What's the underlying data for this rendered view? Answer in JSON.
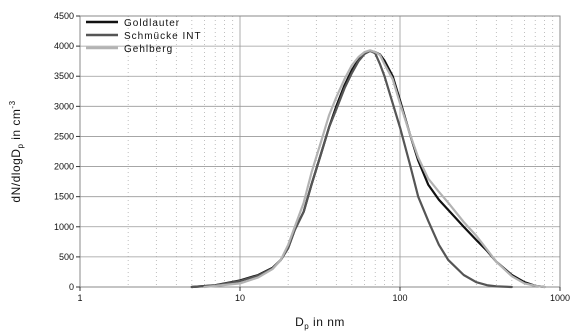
{
  "chart_data": {
    "type": "line",
    "xscale": "log",
    "xlim": [
      1,
      1000
    ],
    "ylim": [
      0,
      4500
    ],
    "grid": true,
    "legend_position": "top-left",
    "xlabel_main": "D",
    "xlabel_sub": "p",
    "xlabel_rest": " in nm",
    "ylabel_main": "dN/dlogD",
    "ylabel_sub": "p",
    "ylabel_rest": " in cm",
    "ylabel_sup": "-3",
    "x_ticks": [
      1,
      10,
      100,
      1000
    ],
    "x_tick_labels": [
      "1",
      "10",
      "100",
      "1000"
    ],
    "y_ticks": [
      0,
      500,
      1000,
      1500,
      2000,
      2500,
      3000,
      3500,
      4000,
      4500
    ],
    "y_tick_labels": [
      "0",
      "500",
      "1000",
      "1500",
      "2000",
      "2500",
      "3000",
      "3500",
      "4000",
      "4500"
    ],
    "series": [
      {
        "name": "Goldlauter",
        "color": "#111111",
        "points": [
          [
            5,
            0
          ],
          [
            7,
            30
          ],
          [
            10,
            110
          ],
          [
            13,
            200
          ],
          [
            16,
            320
          ],
          [
            18,
            450
          ],
          [
            20,
            650
          ],
          [
            22,
            950
          ],
          [
            25,
            1250
          ],
          [
            28,
            1700
          ],
          [
            32,
            2200
          ],
          [
            36,
            2650
          ],
          [
            40,
            3000
          ],
          [
            45,
            3350
          ],
          [
            50,
            3600
          ],
          [
            55,
            3780
          ],
          [
            60,
            3880
          ],
          [
            65,
            3920
          ],
          [
            70,
            3900
          ],
          [
            75,
            3860
          ],
          [
            80,
            3760
          ],
          [
            90,
            3500
          ],
          [
            100,
            3100
          ],
          [
            115,
            2550
          ],
          [
            130,
            2100
          ],
          [
            150,
            1700
          ],
          [
            175,
            1450
          ],
          [
            200,
            1280
          ],
          [
            250,
            1000
          ],
          [
            300,
            780
          ],
          [
            350,
            600
          ],
          [
            400,
            420
          ],
          [
            500,
            200
          ],
          [
            600,
            80
          ],
          [
            700,
            20
          ],
          [
            800,
            0
          ]
        ]
      },
      {
        "name": "Schmücke INT",
        "color": "#555555",
        "points": [
          [
            5,
            0
          ],
          [
            7,
            25
          ],
          [
            10,
            100
          ],
          [
            13,
            190
          ],
          [
            16,
            310
          ],
          [
            18,
            450
          ],
          [
            20,
            650
          ],
          [
            22,
            950
          ],
          [
            25,
            1250
          ],
          [
            28,
            1700
          ],
          [
            32,
            2200
          ],
          [
            36,
            2650
          ],
          [
            40,
            2950
          ],
          [
            45,
            3300
          ],
          [
            50,
            3550
          ],
          [
            55,
            3750
          ],
          [
            60,
            3870
          ],
          [
            65,
            3920
          ],
          [
            70,
            3880
          ],
          [
            75,
            3700
          ],
          [
            80,
            3500
          ],
          [
            90,
            3050
          ],
          [
            100,
            2650
          ],
          [
            115,
            2050
          ],
          [
            130,
            1500
          ],
          [
            150,
            1100
          ],
          [
            175,
            700
          ],
          [
            200,
            450
          ],
          [
            250,
            200
          ],
          [
            300,
            80
          ],
          [
            350,
            30
          ],
          [
            400,
            10
          ],
          [
            500,
            0
          ]
        ]
      },
      {
        "name": "Gehlberg",
        "color": "#b3b3b3",
        "points": [
          [
            6,
            0
          ],
          [
            10,
            60
          ],
          [
            13,
            160
          ],
          [
            16,
            300
          ],
          [
            18,
            450
          ],
          [
            20,
            700
          ],
          [
            22,
            1000
          ],
          [
            25,
            1400
          ],
          [
            28,
            1900
          ],
          [
            32,
            2400
          ],
          [
            36,
            2850
          ],
          [
            40,
            3150
          ],
          [
            45,
            3450
          ],
          [
            50,
            3680
          ],
          [
            55,
            3820
          ],
          [
            60,
            3900
          ],
          [
            65,
            3930
          ],
          [
            70,
            3900
          ],
          [
            75,
            3850
          ],
          [
            80,
            3700
          ],
          [
            90,
            3450
          ],
          [
            100,
            3050
          ],
          [
            115,
            2550
          ],
          [
            130,
            2150
          ],
          [
            150,
            1800
          ],
          [
            175,
            1580
          ],
          [
            200,
            1400
          ],
          [
            250,
            1080
          ],
          [
            300,
            850
          ],
          [
            350,
            620
          ],
          [
            400,
            420
          ],
          [
            500,
            180
          ],
          [
            600,
            60
          ],
          [
            700,
            20
          ],
          [
            800,
            0
          ]
        ]
      }
    ]
  }
}
